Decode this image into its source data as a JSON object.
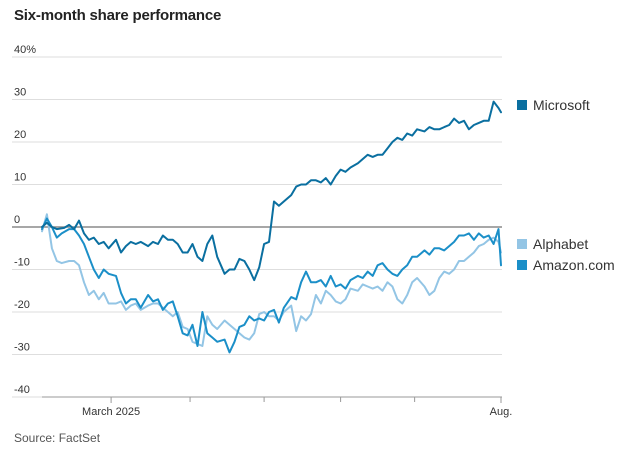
{
  "chart_data": {
    "type": "line",
    "title": "Six-month share performance",
    "source": "Source: FactSet",
    "ylabel": "",
    "xlabel": "",
    "ylim": [
      -40,
      40
    ],
    "y_unit_suffix": "%",
    "y_ticks": [
      40,
      30,
      20,
      10,
      0,
      -10,
      -20,
      -30,
      -40
    ],
    "y_tick_labels": [
      "40%",
      "30",
      "20",
      "10",
      "0",
      "-10",
      "-20",
      "-30",
      "-40"
    ],
    "x_range_days": [
      0,
      186
    ],
    "x_tick_labels": [
      {
        "label": "March 2025",
        "day": 28
      },
      {
        "label": "Aug.",
        "day": 186
      }
    ],
    "x_minor_tick_days": [
      60,
      90,
      121,
      151
    ],
    "series": [
      {
        "name": "Microsoft",
        "color": "#0a6fa0",
        "x": [
          0,
          2,
          4,
          6,
          9,
          11,
          13,
          15,
          17,
          19,
          21,
          23,
          25,
          27,
          30,
          32,
          34,
          36,
          38,
          40,
          43,
          45,
          47,
          49,
          51,
          53,
          55,
          57,
          59,
          61,
          63,
          65,
          67,
          69,
          71,
          74,
          76,
          78,
          80,
          82,
          84,
          86,
          88,
          90,
          92,
          94,
          96,
          98,
          101,
          103,
          105,
          107,
          109,
          111,
          113,
          115,
          117,
          119,
          121,
          123,
          125,
          128,
          130,
          132,
          134,
          136,
          138,
          140,
          142,
          144,
          146,
          148,
          150,
          152,
          155,
          157,
          159,
          161,
          163,
          165,
          167,
          169,
          171,
          173,
          175,
          177,
          179,
          181,
          183,
          185,
          186
        ],
        "values": [
          0,
          1,
          0,
          -0.5,
          -0.2,
          0.5,
          -0.5,
          1.5,
          -1.5,
          -3,
          -2.5,
          -4,
          -3.5,
          -5,
          -3,
          -6,
          -4.5,
          -3.5,
          -4,
          -3.5,
          -4.5,
          -3.5,
          -4,
          -2,
          -3,
          -3,
          -4,
          -6,
          -6,
          -4,
          -7,
          -8,
          -4,
          -2,
          -7,
          -11,
          -10,
          -10,
          -7.5,
          -8,
          -10,
          -12.5,
          -9.5,
          -4,
          -3.5,
          6,
          5,
          6,
          7.5,
          9.5,
          10,
          10,
          11,
          11,
          10.5,
          11.5,
          10,
          12,
          13.5,
          13,
          14,
          15,
          16,
          17,
          16.5,
          17,
          17,
          18.5,
          20,
          21,
          20.5,
          22,
          21.5,
          23,
          22.5,
          23.5,
          23,
          23,
          23.5,
          24,
          25.5,
          24.5,
          25,
          23,
          24,
          24.5,
          25,
          25,
          29.5,
          28,
          27
        ],
        "legend": "Microsoft"
      },
      {
        "name": "Alphabet",
        "color": "#93c5e5",
        "x": [
          0,
          2,
          4,
          6,
          8,
          11,
          13,
          15,
          17,
          19,
          21,
          23,
          25,
          27,
          30,
          32,
          34,
          36,
          38,
          40,
          43,
          45,
          47,
          49,
          51,
          53,
          55,
          57,
          59,
          61,
          63,
          65,
          67,
          69,
          71,
          74,
          76,
          78,
          80,
          82,
          84,
          86,
          88,
          90,
          92,
          94,
          96,
          98,
          101,
          103,
          105,
          107,
          109,
          111,
          113,
          115,
          117,
          119,
          121,
          123,
          125,
          128,
          130,
          132,
          134,
          136,
          138,
          140,
          142,
          144,
          146,
          148,
          150,
          152,
          155,
          157,
          159,
          161,
          163,
          165,
          167,
          169,
          171,
          173,
          175,
          177,
          179,
          181,
          183,
          185,
          186
        ],
        "values": [
          -1,
          3,
          -5,
          -8,
          -8.5,
          -8,
          -8,
          -9,
          -13,
          -16,
          -15,
          -17,
          -15.5,
          -18,
          -18,
          -17.5,
          -19.5,
          -18.5,
          -18,
          -19.5,
          -18.5,
          -18,
          -18,
          -19,
          -20,
          -21,
          -20,
          -23.5,
          -24,
          -27,
          -27.5,
          -28,
          -21,
          -23,
          -24,
          -22,
          -23,
          -24,
          -25,
          -26,
          -26.5,
          -25,
          -20.5,
          -20,
          -21,
          -21,
          -22,
          -20,
          -18.5,
          -24.5,
          -21,
          -22,
          -20.5,
          -16,
          -18,
          -15,
          -16,
          -17.5,
          -18,
          -17,
          -14.5,
          -15,
          -13.5,
          -14,
          -14.5,
          -14,
          -15,
          -13,
          -14,
          -17,
          -18,
          -16,
          -13,
          -12,
          -14,
          -16,
          -15,
          -12,
          -10.5,
          -11,
          -10,
          -8,
          -8,
          -7,
          -6,
          -4.5,
          -4,
          -3,
          -2.5,
          -3.5,
          -6
        ],
        "legend": "Alphabet"
      },
      {
        "name": "Amazon.com",
        "color": "#1b8fc8",
        "x": [
          0,
          2,
          4,
          6,
          8,
          11,
          13,
          15,
          17,
          19,
          21,
          23,
          25,
          27,
          30,
          32,
          34,
          36,
          38,
          40,
          43,
          45,
          47,
          49,
          51,
          53,
          55,
          57,
          59,
          61,
          63,
          65,
          67,
          69,
          71,
          74,
          76,
          78,
          80,
          82,
          84,
          86,
          88,
          90,
          92,
          94,
          96,
          98,
          101,
          103,
          105,
          107,
          109,
          111,
          113,
          115,
          117,
          119,
          121,
          123,
          125,
          128,
          130,
          132,
          134,
          136,
          138,
          140,
          142,
          144,
          146,
          148,
          150,
          152,
          155,
          157,
          159,
          161,
          163,
          165,
          167,
          169,
          171,
          173,
          175,
          177,
          179,
          181,
          183,
          185,
          186
        ],
        "values": [
          -0.5,
          2,
          0,
          -2.5,
          -1.5,
          -0.5,
          -0.5,
          -2,
          -4,
          -7,
          -10,
          -12,
          -10,
          -11,
          -11.5,
          -15.5,
          -18,
          -17,
          -17,
          -19,
          -16,
          -17.5,
          -17,
          -19.5,
          -18,
          -17.5,
          -21,
          -25,
          -25.5,
          -23,
          -28,
          -20,
          -25,
          -26,
          -27,
          -26.5,
          -29.5,
          -27,
          -23.5,
          -23,
          -21,
          -22,
          -21.5,
          -22,
          -20,
          -19.5,
          -22.5,
          -19,
          -16.5,
          -17,
          -13,
          -10.5,
          -13,
          -13,
          -12.5,
          -14,
          -11.5,
          -14,
          -13.5,
          -14.5,
          -12.5,
          -11.5,
          -12,
          -10.5,
          -11.5,
          -9,
          -8.5,
          -10,
          -11,
          -11.5,
          -10,
          -9,
          -7,
          -7,
          -5.5,
          -6.5,
          -5,
          -5,
          -5.5,
          -4.5,
          -3.5,
          -2,
          -2,
          -1.5,
          -3,
          -1.5,
          -2.5,
          -2,
          -4,
          -0.5,
          -9
        ],
        "legend": "Amazon.com"
      }
    ]
  }
}
